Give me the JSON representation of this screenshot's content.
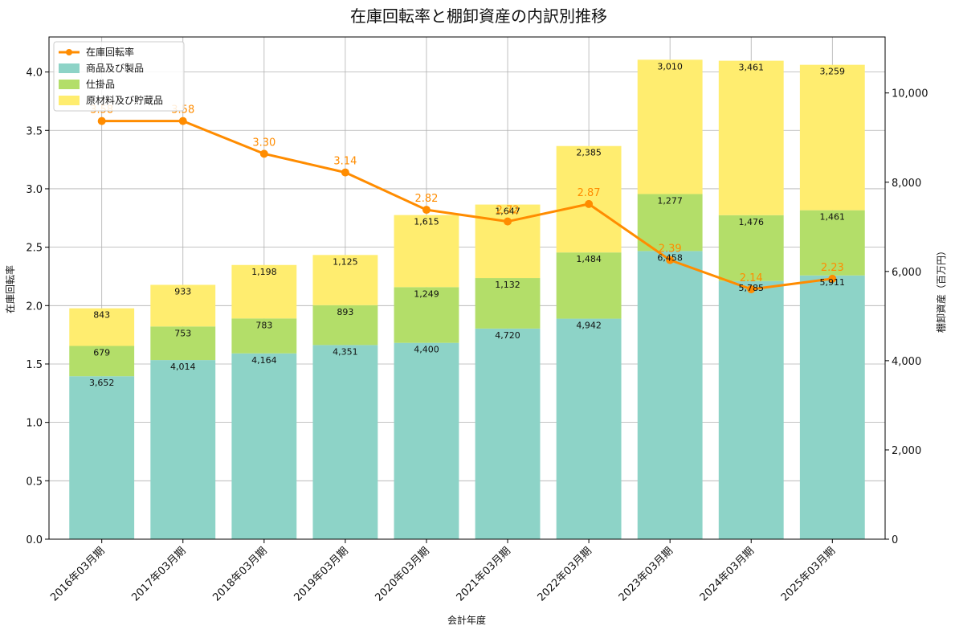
{
  "chart_data": {
    "type": "bar",
    "title": "在庫回転率と棚卸資産の内訳別推移",
    "xlabel": "会計年度",
    "ylabel_left": "在庫回転率",
    "ylabel_right": "棚卸資産（百万円）",
    "categories": [
      "2016年03月期",
      "2017年03月期",
      "2018年03月期",
      "2019年03月期",
      "2020年03月期",
      "2021年03月期",
      "2022年03月期",
      "2023年03月期",
      "2024年03月期",
      "2025年03月期"
    ],
    "stacked": true,
    "series": [
      {
        "name": "商品及び製品",
        "axis": "right",
        "color": "#8dd3c7",
        "values": [
          3652,
          4014,
          4164,
          4351,
          4400,
          4720,
          4942,
          6458,
          5785,
          5911
        ]
      },
      {
        "name": "仕掛品",
        "axis": "right",
        "color": "#b3de69",
        "values": [
          679,
          753,
          783,
          893,
          1249,
          1132,
          1484,
          1277,
          1476,
          1461
        ]
      },
      {
        "name": "原材料及び貯蔵品",
        "axis": "right",
        "color": "#ffed6f",
        "values": [
          843,
          933,
          1198,
          1125,
          1615,
          1647,
          2385,
          3010,
          3461,
          3259
        ]
      }
    ],
    "line_series": {
      "name": "在庫回転率",
      "type": "line",
      "axis": "left",
      "color": "#ff8c00",
      "values": [
        3.58,
        3.58,
        3.3,
        3.14,
        2.82,
        2.72,
        2.87,
        2.39,
        2.14,
        2.23
      ]
    },
    "bar_value_labels": [
      [
        "3,652",
        "4,014",
        "4,164",
        "4,351",
        "4,400",
        "4,720",
        "4,942",
        "6,458",
        "5,785",
        "5,911"
      ],
      [
        "679",
        "753",
        "783",
        "893",
        "1,249",
        "1,132",
        "1,484",
        "1,277",
        "1,476",
        "1,461"
      ],
      [
        "843",
        "933",
        "1,198",
        "1,125",
        "1,615",
        "1,647",
        "2,385",
        "3,010",
        "3,461",
        "3,259"
      ]
    ],
    "line_value_labels": [
      "3.58",
      "3.58",
      "3.30",
      "3.14",
      "2.82",
      "2.72",
      "2.87",
      "2.39",
      "2.14",
      "2.23"
    ],
    "ylim_left": [
      0,
      4.3
    ],
    "ylim_right": [
      0,
      11255
    ],
    "yticks_left": [
      "0.0",
      "0.5",
      "1.0",
      "1.5",
      "2.0",
      "2.5",
      "3.0",
      "3.5",
      "4.0"
    ],
    "yticks_right": [
      "0",
      "2,000",
      "4,000",
      "6,000",
      "8,000",
      "10,000"
    ],
    "grid": true,
    "legend_position": "top-left",
    "legend_entries": [
      "在庫回転率",
      "商品及び製品",
      "仕掛品",
      "原材料及び貯蔵品"
    ]
  }
}
